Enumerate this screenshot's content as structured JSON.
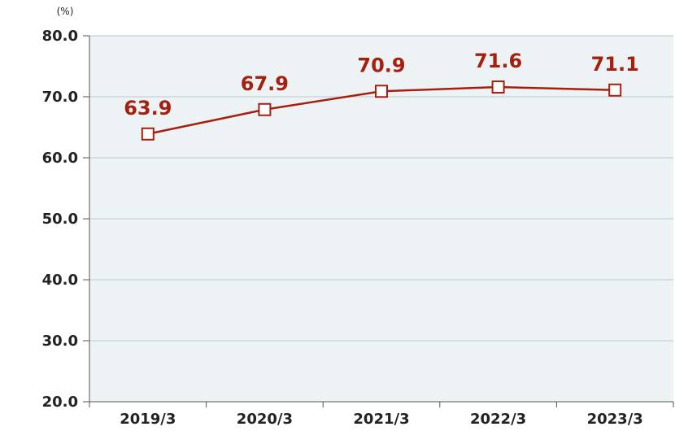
{
  "chart_data": {
    "type": "line",
    "unit_label": "(%)",
    "categories": [
      "2019/3",
      "2020/3",
      "2021/3",
      "2022/3",
      "2023/3"
    ],
    "series": [
      {
        "values": [
          63.9,
          67.9,
          70.9,
          71.6,
          71.1
        ]
      }
    ],
    "data_labels": [
      "63.9",
      "67.9",
      "70.9",
      "71.6",
      "71.1"
    ],
    "y_ticks": [
      "20.0",
      "30.0",
      "40.0",
      "50.0",
      "60.0",
      "70.0",
      "80.0"
    ],
    "ylim": [
      20,
      80
    ],
    "grid": true,
    "colors": {
      "line": "#a6200f",
      "plot_background": "#edf3f5",
      "grid": "#cfd6d9",
      "axis": "#555555"
    }
  }
}
